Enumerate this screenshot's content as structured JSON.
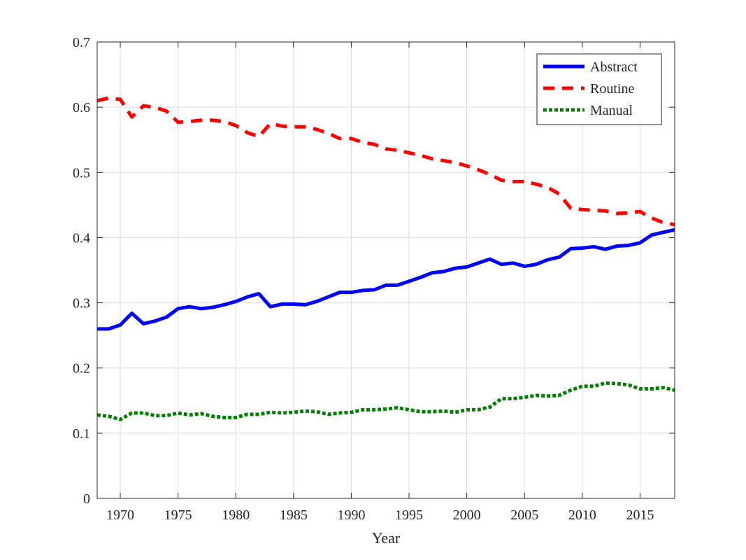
{
  "chart_data": {
    "type": "line",
    "title": "",
    "xlabel": "Year",
    "ylabel": "",
    "xlim": [
      1968,
      2018
    ],
    "ylim": [
      0,
      0.7
    ],
    "x_ticks": [
      "1970",
      "1975",
      "1980",
      "1985",
      "1990",
      "1995",
      "2000",
      "2005",
      "2010",
      "2015"
    ],
    "y_ticks": [
      "0",
      "0.1",
      "0.2",
      "0.3",
      "0.4",
      "0.5",
      "0.6",
      "0.7"
    ],
    "grid": true,
    "legend_position": "top-right",
    "x": [
      1968,
      1969,
      1970,
      1971,
      1972,
      1973,
      1974,
      1975,
      1976,
      1977,
      1978,
      1979,
      1980,
      1981,
      1982,
      1983,
      1984,
      1985,
      1986,
      1987,
      1988,
      1989,
      1990,
      1991,
      1992,
      1993,
      1994,
      1995,
      1996,
      1997,
      1998,
      1999,
      2000,
      2001,
      2002,
      2003,
      2004,
      2005,
      2006,
      2007,
      2008,
      2009,
      2010,
      2011,
      2012,
      2013,
      2014,
      2015,
      2016,
      2017,
      2018
    ],
    "series": [
      {
        "name": "Abstract",
        "color": "#0000ff",
        "style": "solid",
        "values": [
          0.26,
          0.26,
          0.266,
          0.284,
          0.268,
          0.272,
          0.278,
          0.291,
          0.294,
          0.291,
          0.293,
          0.297,
          0.302,
          0.309,
          0.314,
          0.294,
          0.298,
          0.298,
          0.297,
          0.302,
          0.309,
          0.316,
          0.316,
          0.319,
          0.32,
          0.327,
          0.327,
          0.333,
          0.339,
          0.346,
          0.348,
          0.353,
          0.355,
          0.361,
          0.367,
          0.359,
          0.361,
          0.356,
          0.359,
          0.366,
          0.37,
          0.383,
          0.384,
          0.386,
          0.382,
          0.387,
          0.388,
          0.392,
          0.404,
          0.408,
          0.412
        ]
      },
      {
        "name": "Routine",
        "color": "#ff0000",
        "style": "dashed",
        "values": [
          0.61,
          0.614,
          0.612,
          0.585,
          0.602,
          0.6,
          0.594,
          0.577,
          0.578,
          0.58,
          0.58,
          0.578,
          0.572,
          0.561,
          0.555,
          0.575,
          0.571,
          0.57,
          0.57,
          0.566,
          0.56,
          0.552,
          0.552,
          0.546,
          0.543,
          0.536,
          0.534,
          0.53,
          0.526,
          0.521,
          0.518,
          0.515,
          0.51,
          0.504,
          0.497,
          0.488,
          0.486,
          0.486,
          0.482,
          0.477,
          0.467,
          0.445,
          0.443,
          0.442,
          0.441,
          0.437,
          0.438,
          0.44,
          0.43,
          0.423,
          0.42
        ]
      },
      {
        "name": "Manual",
        "color": "#008000",
        "style": "dotted",
        "values": [
          0.128,
          0.126,
          0.121,
          0.131,
          0.131,
          0.127,
          0.127,
          0.131,
          0.128,
          0.13,
          0.126,
          0.124,
          0.124,
          0.129,
          0.129,
          0.132,
          0.131,
          0.132,
          0.134,
          0.133,
          0.129,
          0.131,
          0.132,
          0.136,
          0.136,
          0.137,
          0.139,
          0.136,
          0.133,
          0.133,
          0.134,
          0.132,
          0.136,
          0.136,
          0.14,
          0.153,
          0.153,
          0.155,
          0.158,
          0.157,
          0.158,
          0.166,
          0.172,
          0.172,
          0.177,
          0.176,
          0.174,
          0.168,
          0.168,
          0.17,
          0.166
        ]
      }
    ]
  }
}
